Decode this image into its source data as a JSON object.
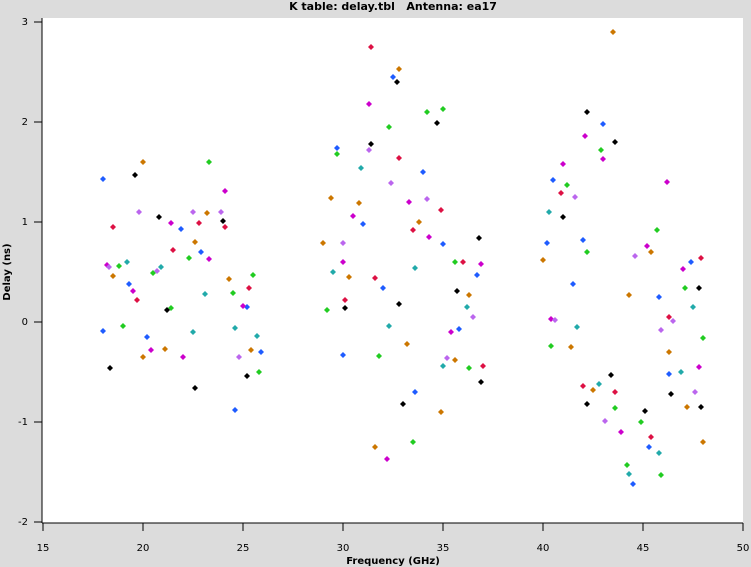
{
  "chart_data": {
    "type": "scatter",
    "title": "K table: delay.tbl   Antenna: ea17",
    "x_label": "Frequency (GHz)",
    "y_label": "Delay (ns)",
    "xlim": [
      15,
      50
    ],
    "ylim": [
      -2,
      3
    ],
    "xticks": [
      15,
      20,
      25,
      30,
      35,
      40,
      45,
      50
    ],
    "yticks": [
      -2,
      -1,
      0,
      1,
      2,
      3
    ],
    "series": [
      {
        "color": "#1f5cff",
        "x": [
          18.0,
          18.0,
          19.3,
          20.2,
          21.9,
          22.9,
          24.6,
          25.2,
          25.9,
          29.7,
          30.0,
          31.0,
          32.0,
          32.5,
          33.6,
          34.0,
          35.0,
          35.8,
          36.7,
          40.2,
          40.5,
          41.5,
          42.0,
          43.0,
          44.5,
          45.3,
          45.8,
          46.3,
          47.4
        ],
        "values": [
          1.43,
          -0.09,
          0.38,
          -0.15,
          0.93,
          0.7,
          -0.88,
          0.15,
          -0.3,
          1.74,
          -0.33,
          0.98,
          0.34,
          2.45,
          -0.7,
          1.5,
          0.78,
          -0.07,
          0.47,
          0.79,
          1.42,
          0.38,
          0.82,
          1.98,
          -1.62,
          -1.25,
          0.25,
          -0.52,
          0.6
        ]
      },
      {
        "color": "#22cc22",
        "x": [
          18.8,
          19.0,
          20.5,
          21.4,
          22.3,
          23.3,
          24.5,
          25.5,
          25.8,
          29.2,
          29.7,
          31.8,
          32.3,
          33.5,
          34.2,
          35.0,
          35.6,
          36.3,
          40.4,
          41.2,
          42.2,
          42.9,
          43.6,
          44.2,
          44.9,
          45.7,
          45.9,
          47.1,
          48.0
        ],
        "values": [
          0.56,
          -0.04,
          0.49,
          0.14,
          0.64,
          1.6,
          0.29,
          0.47,
          -0.5,
          0.12,
          1.68,
          -0.34,
          1.95,
          -1.2,
          2.1,
          2.13,
          0.6,
          -0.46,
          -0.24,
          1.37,
          0.7,
          1.72,
          -0.86,
          -1.43,
          -1.0,
          0.92,
          -1.53,
          0.34,
          -0.16
        ]
      },
      {
        "color": "#cc00cc",
        "x": [
          18.2,
          19.5,
          20.4,
          21.4,
          22.0,
          23.3,
          24.1,
          25.0,
          30.0,
          30.5,
          31.3,
          32.2,
          33.3,
          34.3,
          35.4,
          36.9,
          40.4,
          41.0,
          42.1,
          43.0,
          43.9,
          45.2,
          46.2,
          47.0,
          47.8
        ],
        "values": [
          0.57,
          0.31,
          -0.28,
          0.99,
          -0.35,
          0.63,
          1.31,
          0.16,
          0.6,
          1.06,
          2.18,
          -1.37,
          1.2,
          0.85,
          -0.1,
          0.58,
          0.03,
          1.58,
          1.86,
          1.63,
          -1.1,
          0.76,
          1.4,
          0.53,
          -0.45
        ]
      },
      {
        "color": "#cc7700",
        "x": [
          18.5,
          20.0,
          20.0,
          21.1,
          22.6,
          23.2,
          24.3,
          25.4,
          29.0,
          29.4,
          30.3,
          30.8,
          31.6,
          32.8,
          33.2,
          33.8,
          34.9,
          35.6,
          36.3,
          40.0,
          41.4,
          42.5,
          43.5,
          44.3,
          45.4,
          46.3,
          47.2,
          48.0
        ],
        "values": [
          0.46,
          1.6,
          -0.35,
          -0.27,
          0.8,
          1.09,
          0.43,
          -0.28,
          0.79,
          1.24,
          0.45,
          1.19,
          -1.25,
          2.53,
          -0.22,
          1.0,
          -0.9,
          -0.38,
          0.27,
          0.62,
          -0.25,
          -0.68,
          2.9,
          0.27,
          0.7,
          -0.3,
          -0.85,
          -1.2
        ]
      },
      {
        "color": "#000000",
        "x": [
          18.35,
          19.6,
          20.8,
          21.2,
          22.6,
          24.0,
          25.2,
          30.1,
          31.4,
          32.7,
          32.8,
          33.0,
          34.7,
          35.7,
          36.8,
          36.9,
          41.0,
          42.2,
          42.2,
          43.4,
          43.6,
          45.1,
          46.4,
          47.8,
          47.9
        ],
        "values": [
          -0.46,
          1.47,
          1.05,
          0.12,
          -0.66,
          1.01,
          -0.54,
          0.14,
          1.78,
          2.4,
          0.18,
          -0.82,
          1.99,
          0.31,
          0.84,
          -0.6,
          1.05,
          2.1,
          -0.82,
          -0.53,
          1.8,
          -0.89,
          -0.72,
          0.34,
          -0.85
        ]
      },
      {
        "color": "#bb66ee",
        "x": [
          18.3,
          19.8,
          20.7,
          22.5,
          23.9,
          24.8,
          30.0,
          31.3,
          32.4,
          34.2,
          35.2,
          36.5,
          40.6,
          41.6,
          43.1,
          44.6,
          45.9,
          46.5,
          47.6
        ],
        "values": [
          0.55,
          1.1,
          0.51,
          1.1,
          1.1,
          -0.35,
          0.79,
          1.72,
          1.39,
          1.23,
          -0.36,
          0.05,
          0.02,
          1.25,
          -0.99,
          0.66,
          -0.08,
          0.01,
          -0.7
        ]
      },
      {
        "color": "#dd1144",
        "x": [
          18.5,
          19.7,
          21.5,
          22.8,
          24.1,
          25.3,
          30.1,
          31.4,
          31.6,
          32.8,
          33.5,
          34.9,
          36.0,
          37.0,
          40.9,
          42.0,
          43.6,
          45.4,
          46.3,
          47.9
        ],
        "values": [
          0.95,
          0.22,
          0.72,
          0.99,
          0.95,
          0.34,
          0.22,
          2.75,
          0.44,
          1.64,
          0.92,
          1.12,
          0.6,
          -0.44,
          1.29,
          -0.64,
          -0.7,
          -1.15,
          0.05,
          0.64
        ]
      },
      {
        "color": "#22aaaa",
        "x": [
          19.2,
          20.9,
          22.5,
          23.1,
          24.6,
          25.7,
          29.5,
          30.9,
          32.3,
          33.6,
          35.0,
          36.2,
          40.3,
          41.7,
          42.8,
          44.3,
          45.8,
          46.9,
          47.5
        ],
        "values": [
          0.6,
          0.55,
          -0.1,
          0.28,
          -0.06,
          -0.14,
          0.5,
          1.54,
          -0.04,
          0.54,
          -0.44,
          0.15,
          1.1,
          -0.05,
          -0.62,
          -1.52,
          -1.31,
          -0.5,
          0.15
        ]
      }
    ]
  }
}
